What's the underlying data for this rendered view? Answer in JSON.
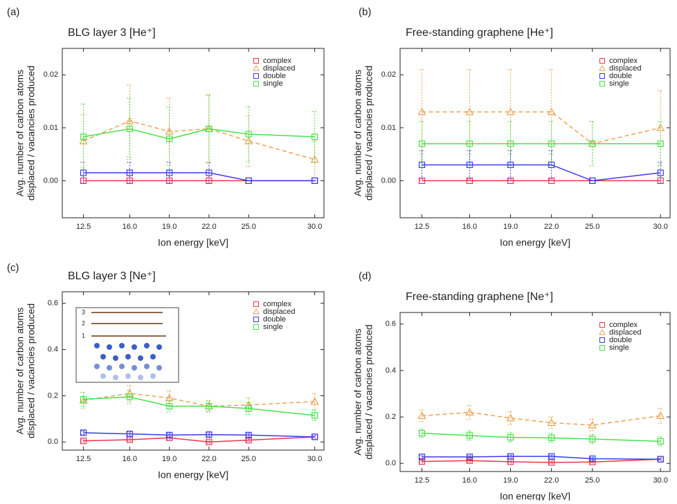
{
  "chart_data": [
    {
      "type": "line",
      "panel": "(a)",
      "title": "BLG layer 3 [He⁺]",
      "xlabel": "Ion energy [keV]",
      "ylabel": [
        "Avg. number of carbon atoms",
        "displaced / vacancies produced"
      ],
      "legend": "upper right",
      "x": [
        12.5,
        16,
        19,
        22,
        25,
        30
      ],
      "xlim": [
        10.9,
        30.7
      ],
      "xticks": [
        12.5,
        {
          "value": 16,
          "label": "16.0"
        },
        {
          "value": 19,
          "label": "19.0"
        },
        {
          "value": 22,
          "label": "22.0"
        },
        {
          "value": 25,
          "label": "25.0"
        },
        {
          "value": 30,
          "label": "30.0"
        }
      ],
      "ylim": [
        -0.007,
        0.025
      ],
      "yticks": [
        {
          "value": 0,
          "label": "0.00"
        },
        {
          "value": 0.01,
          "label": "0.01"
        },
        {
          "value": 0.02,
          "label": "0.02"
        }
      ],
      "series": [
        {
          "name": "complex",
          "color": "#e8344e",
          "marker": "square",
          "dash": false,
          "values": [
            0,
            0,
            0,
            0,
            0,
            0
          ],
          "errors": [
            0,
            0,
            0,
            0,
            0,
            0
          ]
        },
        {
          "name": "displaced",
          "color": "#f0a050",
          "marker": "triangle",
          "dash": true,
          "values": [
            0.0075,
            0.0113,
            0.0093,
            0.0098,
            0.0075,
            0.004
          ],
          "errors": [
            0.005,
            0.0068,
            0.0063,
            0.0065,
            0.0048,
            0.0035
          ]
        },
        {
          "name": "double",
          "color": "#3a3ae6",
          "marker": "square",
          "dash": false,
          "values": [
            0.0015,
            0.0015,
            0.0015,
            0.0015,
            0,
            0
          ],
          "errors": [
            0.002,
            0.002,
            0.002,
            0.002,
            0,
            0
          ]
        },
        {
          "name": "single",
          "color": "#48e048",
          "marker": "square",
          "dash": false,
          "values": [
            0.0083,
            0.0098,
            0.0079,
            0.0098,
            0.0088,
            0.0083
          ],
          "errors": [
            0.0062,
            0.0058,
            0.006,
            0.0063,
            0.0052,
            0.0048
          ]
        }
      ]
    },
    {
      "type": "line",
      "panel": "(b)",
      "title": "Free-standing graphene [He⁺]",
      "xlabel": "Ion energy [keV]",
      "ylabel": [
        "Avg. number of carbon atoms",
        "displaced / vacancies produced"
      ],
      "legend": "upper right",
      "x": [
        12.5,
        16,
        19,
        22,
        25,
        30
      ],
      "xlim": [
        10.9,
        30.7
      ],
      "xticks": [
        12.5,
        {
          "value": 16,
          "label": "16.0"
        },
        {
          "value": 19,
          "label": "19.0"
        },
        {
          "value": 22,
          "label": "22.0"
        },
        {
          "value": 25,
          "label": "25.0"
        },
        {
          "value": 30,
          "label": "30.0"
        }
      ],
      "ylim": [
        -0.007,
        0.025
      ],
      "yticks": [
        {
          "value": 0,
          "label": "0.00"
        },
        {
          "value": 0.01,
          "label": "0.01"
        },
        {
          "value": 0.02,
          "label": "0.02"
        }
      ],
      "series": [
        {
          "name": "complex",
          "color": "#e8344e",
          "marker": "square",
          "dash": false,
          "values": [
            0,
            0,
            0,
            0,
            0,
            0
          ],
          "errors": [
            0,
            0,
            0,
            0,
            0,
            0
          ]
        },
        {
          "name": "displaced",
          "color": "#f0a050",
          "marker": "triangle",
          "dash": true,
          "values": [
            0.013,
            0.013,
            0.013,
            0.013,
            0.007,
            0.01
          ],
          "errors": [
            0.008,
            0.008,
            0.008,
            0.008,
            0.0042,
            0.007
          ]
        },
        {
          "name": "double",
          "color": "#3a3ae6",
          "marker": "square",
          "dash": false,
          "values": [
            0.003,
            0.003,
            0.003,
            0.003,
            0,
            0.0015
          ],
          "errors": [
            0.0027,
            0.0027,
            0.0027,
            0.0027,
            0,
            0.002
          ]
        },
        {
          "name": "single",
          "color": "#48e048",
          "marker": "square",
          "dash": false,
          "values": [
            0.007,
            0.007,
            0.007,
            0.007,
            0.007,
            0.007
          ],
          "errors": [
            0.0042,
            0.0042,
            0.0042,
            0.0042,
            0.0042,
            0.0042
          ]
        }
      ]
    },
    {
      "type": "line",
      "panel": "(c)",
      "title": "BLG layer 3 [Ne⁺]",
      "xlabel": "Ion energy [keV]",
      "ylabel": [
        "Avg. number of carbon atoms",
        "displaced / vacancies produced"
      ],
      "legend": "upper right",
      "inset_labels": [
        "3",
        "2",
        "1"
      ],
      "x": [
        12.5,
        16,
        19,
        22,
        25,
        30
      ],
      "xlim": [
        10.9,
        30.7
      ],
      "xticks": [
        12.5,
        {
          "value": 16,
          "label": "16.0"
        },
        {
          "value": 19,
          "label": "19.0"
        },
        {
          "value": 22,
          "label": "22.0"
        },
        {
          "value": 25,
          "label": "25.0"
        },
        {
          "value": 30,
          "label": "30.0"
        }
      ],
      "ylim": [
        -0.035,
        0.65
      ],
      "yticks": [
        {
          "value": 0,
          "label": "0.0"
        },
        0.2,
        0.4,
        0.6
      ],
      "series": [
        {
          "name": "complex",
          "color": "#e8344e",
          "marker": "square",
          "dash": false,
          "values": [
            0.005,
            0.01,
            0.018,
            0,
            0.008,
            0.022
          ],
          "errors": [
            0.005,
            0.006,
            0.006,
            0.005,
            0.006,
            0.006
          ]
        },
        {
          "name": "displaced",
          "color": "#f0a050",
          "marker": "triangle",
          "dash": true,
          "values": [
            0.18,
            0.21,
            0.19,
            0.155,
            0.16,
            0.175
          ],
          "errors": [
            0.035,
            0.035,
            0.032,
            0.025,
            0.03,
            0.035
          ]
        },
        {
          "name": "double",
          "color": "#3a3ae6",
          "marker": "square",
          "dash": false,
          "values": [
            0.04,
            0.035,
            0.03,
            0.032,
            0.03,
            0.022
          ],
          "errors": [
            0.008,
            0.008,
            0.008,
            0.008,
            0.008,
            0.006
          ]
        },
        {
          "name": "single",
          "color": "#48e048",
          "marker": "square",
          "dash": false,
          "values": [
            0.185,
            0.195,
            0.155,
            0.155,
            0.145,
            0.115
          ],
          "errors": [
            0.03,
            0.03,
            0.025,
            0.022,
            0.025,
            0.022
          ]
        }
      ]
    },
    {
      "type": "line",
      "panel": "(d)",
      "title": "Free-standing graphene [Ne⁺]",
      "xlabel": "Ion energy [keV]",
      "ylabel": [
        "Avg. number of carbon atoms",
        "displaced / vacancies produced"
      ],
      "legend": "upper right",
      "x": [
        12.5,
        16,
        19,
        22,
        25,
        30
      ],
      "xlim": [
        10.9,
        30.7
      ],
      "xticks": [
        12.5,
        {
          "value": 16,
          "label": "16.0"
        },
        {
          "value": 19,
          "label": "19.0"
        },
        {
          "value": 22,
          "label": "22.0"
        },
        {
          "value": 25,
          "label": "25.0"
        },
        {
          "value": 30,
          "label": "30.0"
        }
      ],
      "ylim": [
        -0.035,
        0.65
      ],
      "yticks": [
        {
          "value": 0,
          "label": "0.0"
        },
        0.2,
        0.4,
        0.6
      ],
      "series": [
        {
          "name": "complex",
          "color": "#e8344e",
          "marker": "square",
          "dash": false,
          "values": [
            0.008,
            0.012,
            0.007,
            0.004,
            0.006,
            0.018
          ],
          "errors": [
            0.005,
            0.006,
            0.005,
            0.005,
            0.005,
            0.005
          ]
        },
        {
          "name": "displaced",
          "color": "#f0a050",
          "marker": "triangle",
          "dash": true,
          "values": [
            0.205,
            0.22,
            0.195,
            0.175,
            0.165,
            0.205
          ],
          "errors": [
            0.025,
            0.03,
            0.028,
            0.025,
            0.025,
            0.032
          ]
        },
        {
          "name": "double",
          "color": "#3a3ae6",
          "marker": "square",
          "dash": false,
          "values": [
            0.028,
            0.028,
            0.03,
            0.03,
            0.02,
            0.018
          ],
          "errors": [
            0.006,
            0.006,
            0.006,
            0.006,
            0.006,
            0.005
          ]
        },
        {
          "name": "single",
          "color": "#48e048",
          "marker": "square",
          "dash": false,
          "values": [
            0.13,
            0.12,
            0.112,
            0.11,
            0.105,
            0.095
          ],
          "errors": [
            0.018,
            0.02,
            0.02,
            0.02,
            0.02,
            0.02
          ]
        }
      ]
    }
  ]
}
